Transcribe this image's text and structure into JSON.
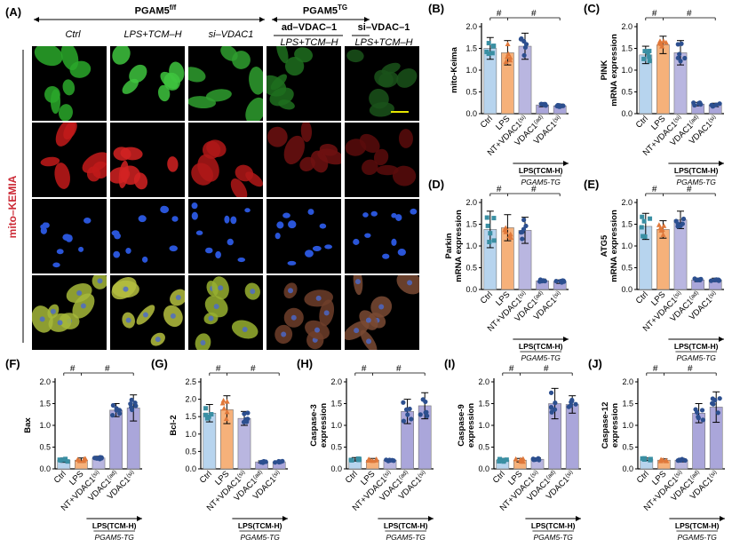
{
  "figure": {
    "panel_A_label": "(A)",
    "headers": {
      "group1": "PGAM5",
      "group1_sup": "f/f",
      "group2": "PGAM5",
      "group2_sup": "TG",
      "columns": [
        "Ctrl",
        "LPS+TCM–H",
        "si–VDAC1",
        "LPS+TCM–H",
        "LPS+TCM–H"
      ],
      "sub_headers": [
        "ad–VDAC–1",
        "si–VDAC–1"
      ]
    },
    "side_label": "mito–KEMIA",
    "colors": {
      "bar_ctrl": "#b7d4ee",
      "bar_lps": "#f6b17a",
      "bar_nt": "#b9b6e0",
      "bar_vdac": "#aaa6da",
      "dot_teal": "#3a8fa3",
      "dot_orange": "#e0783a",
      "dot_navy": "#2c4f8f",
      "scale_bar": "#e6e600"
    },
    "channels": [
      "green",
      "red",
      "blue",
      "merge"
    ],
    "shared_x_categories": [
      "Ctrl",
      "LPS",
      "NT+VDAC1",
      "VDAC1",
      "VDAC1"
    ],
    "category_superscripts": [
      "",
      "",
      "(si)",
      "(ad)",
      "(si)"
    ],
    "group_label": "LPS(TCM-H)",
    "group_sublabel": "PGAM5-TG",
    "sig_mark": "#"
  },
  "chart_data": [
    {
      "panel": "(B)",
      "type": "bar",
      "ylabel": "mito-Keima",
      "ylim": [
        0,
        2.0
      ],
      "yticks": [
        "0.0",
        "0.5",
        "1.0",
        "1.5",
        "2.0"
      ],
      "values": [
        1.5,
        1.4,
        1.55,
        0.2,
        0.18
      ],
      "errors": [
        0.25,
        0.28,
        0.3,
        0.04,
        0.04
      ]
    },
    {
      "panel": "(C)",
      "type": "bar",
      "ylabel": "PINK mRNA expression",
      "ylim": [
        0,
        2.0
      ],
      "yticks": [
        "0.0",
        "0.5",
        "1.0",
        "1.5",
        "2.0"
      ],
      "values": [
        1.35,
        1.58,
        1.4,
        0.22,
        0.2
      ],
      "errors": [
        0.2,
        0.2,
        0.28,
        0.04,
        0.04
      ]
    },
    {
      "panel": "(D)",
      "type": "bar",
      "ylabel": "Parkin mRNA expression",
      "ylim": [
        0,
        2.0
      ],
      "yticks": [
        "0.0",
        "0.5",
        "1.0",
        "1.5",
        "2.0"
      ],
      "values": [
        1.38,
        1.42,
        1.36,
        0.2,
        0.18
      ],
      "errors": [
        0.42,
        0.3,
        0.3,
        0.04,
        0.04
      ]
    },
    {
      "panel": "(E)",
      "type": "bar",
      "ylabel": "ATG5 mRNA expression",
      "ylim": [
        0,
        2.0
      ],
      "yticks": [
        "0.0",
        "0.5",
        "1.0",
        "1.5",
        "2.0"
      ],
      "values": [
        1.45,
        1.38,
        1.6,
        0.22,
        0.22
      ],
      "errors": [
        0.3,
        0.2,
        0.2,
        0.04,
        0.04
      ]
    },
    {
      "panel": "(F)",
      "type": "bar",
      "ylabel": "Bax",
      "ylim": [
        0,
        2.0
      ],
      "yticks": [
        "0.0",
        "0.5",
        "1.0",
        "1.5",
        "2.0"
      ],
      "values": [
        0.2,
        0.2,
        0.25,
        1.35,
        1.4
      ],
      "errors": [
        0.05,
        0.05,
        0.04,
        0.15,
        0.3
      ]
    },
    {
      "panel": "(G)",
      "type": "bar",
      "ylabel": "Bcl-2",
      "ylim": [
        0,
        2.5
      ],
      "yticks": [
        "0.0",
        "0.5",
        "1.0",
        "1.5",
        "2.0",
        "2.5"
      ],
      "values": [
        1.6,
        1.7,
        1.45,
        0.2,
        0.2
      ],
      "errors": [
        0.25,
        0.4,
        0.2,
        0.03,
        0.03
      ]
    },
    {
      "panel": "(H)",
      "type": "bar",
      "ylabel": "Caspase-3 expression",
      "ylim": [
        0,
        2.0
      ],
      "yticks": [
        "0.0",
        "0.5",
        "1.0",
        "1.5",
        "2.0"
      ],
      "values": [
        0.22,
        0.2,
        0.2,
        1.32,
        1.45
      ],
      "errors": [
        0.04,
        0.04,
        0.03,
        0.28,
        0.3
      ]
    },
    {
      "panel": "(I)",
      "type": "bar",
      "ylabel": "Caspase-9 expression",
      "ylim": [
        0,
        2.0
      ],
      "yticks": [
        "0.0",
        "0.5",
        "1.0",
        "1.5",
        "2.0"
      ],
      "values": [
        0.2,
        0.2,
        0.22,
        1.5,
        1.48
      ],
      "errors": [
        0.04,
        0.04,
        0.03,
        0.35,
        0.2
      ]
    },
    {
      "panel": "(J)",
      "type": "bar",
      "ylabel": "Caspase-12 expression",
      "ylim": [
        0,
        2.0
      ],
      "yticks": [
        "0.0",
        "0.5",
        "1.0",
        "1.5",
        "2.0"
      ],
      "values": [
        0.22,
        0.2,
        0.2,
        1.28,
        1.42
      ],
      "errors": [
        0.03,
        0.03,
        0.04,
        0.22,
        0.35
      ]
    }
  ]
}
